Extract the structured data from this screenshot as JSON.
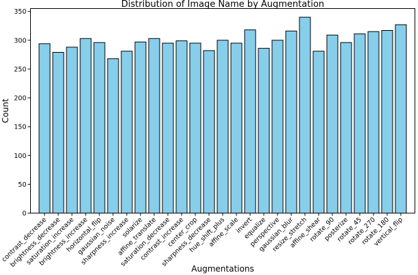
{
  "chart_data": {
    "type": "bar",
    "title": "Distribution of Image Name by Augmentation",
    "xlabel": "Augmentations",
    "ylabel": "Count",
    "ylim": [
      0,
      355
    ],
    "yticks": [
      0,
      50,
      100,
      150,
      200,
      250,
      300,
      350
    ],
    "grid": false,
    "colors": {
      "bar_fill": "#87ceeb",
      "bar_edge": "#000000"
    },
    "categories": [
      "contrast_decrease",
      "brightness_decrease",
      "saturation_increase",
      "brightness_increase",
      "horizontal_flip",
      "gaussian_noise",
      "sharpness_increase",
      "solarize",
      "affine_translate",
      "saturation_decrease",
      "contrast_increase",
      "center_crop",
      "sharpness_decrease",
      "hue_shift_plus",
      "affine_scale",
      "invert",
      "equalize",
      "perspective",
      "gaussian_blur",
      "resize_stretch",
      "affine_shear",
      "rotate_90",
      "posterize",
      "rotate_45",
      "rotate_270",
      "rotate_180",
      "vertical_flip"
    ],
    "values": [
      294,
      279,
      288,
      303,
      296,
      268,
      281,
      297,
      303,
      295,
      299,
      295,
      282,
      300,
      295,
      318,
      286,
      300,
      316,
      340,
      281,
      309,
      296,
      311,
      315,
      317,
      327
    ]
  }
}
